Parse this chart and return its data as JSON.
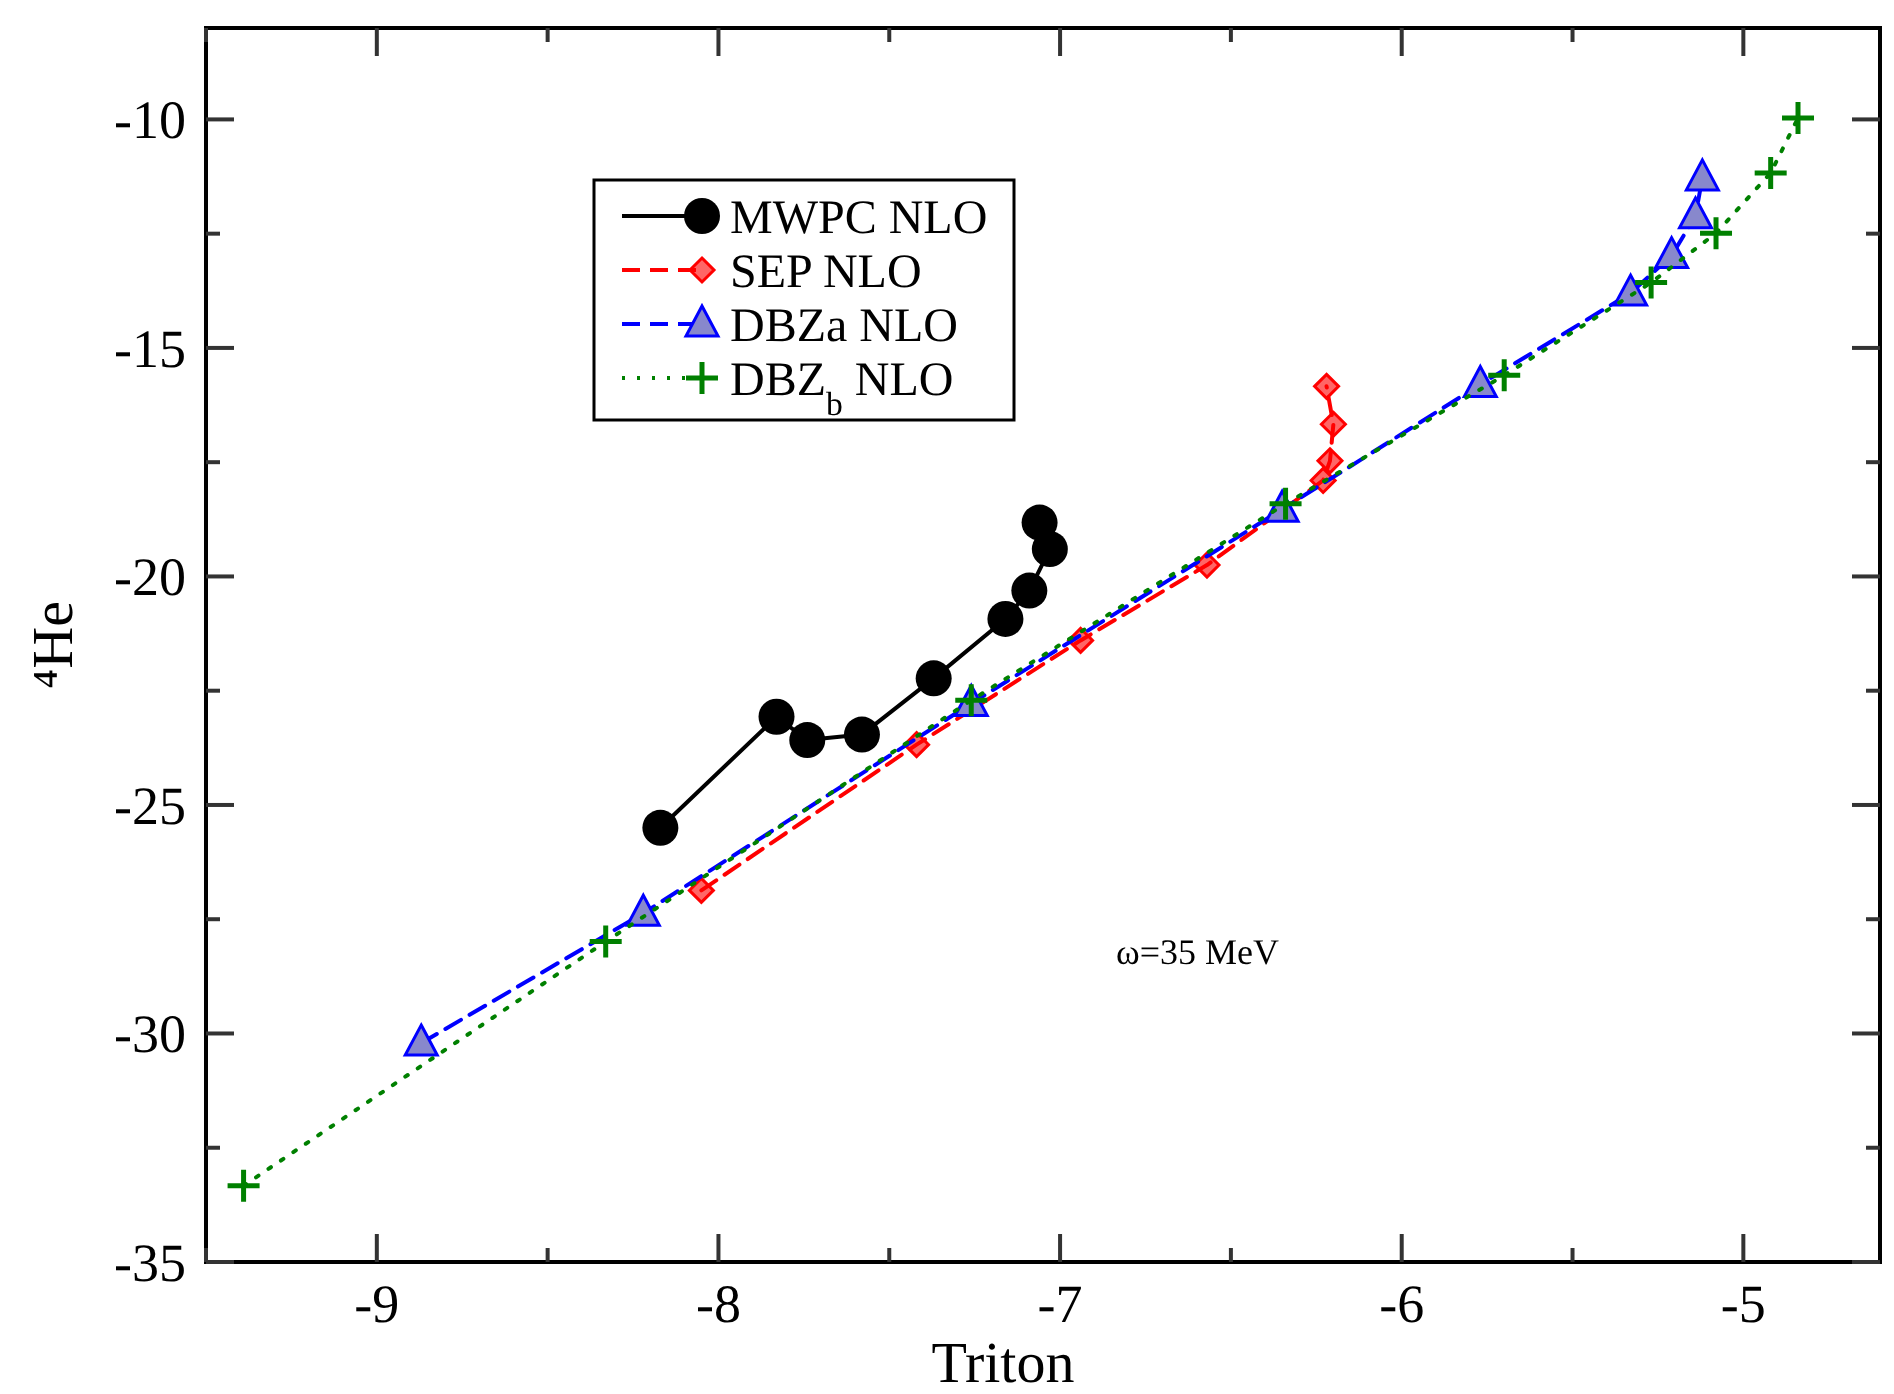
{
  "chart_data": {
    "type": "line",
    "xlabel": "Triton",
    "ylabel": "⁴He",
    "xlim": [
      -9.5,
      -4.6
    ],
    "ylim": [
      -35,
      -8
    ],
    "xticks": [
      {
        "value": -9.5,
        "label": null
      },
      -9,
      {
        "value": -8.5,
        "label": null
      },
      -8,
      {
        "value": -7.5,
        "label": null
      },
      -7,
      {
        "value": -6.5,
        "label": null
      },
      -6,
      {
        "value": -5.5,
        "label": null
      },
      -5
    ],
    "yticks": [
      -35,
      {
        "value": -32.5,
        "label": null
      },
      -30,
      {
        "value": -27.5,
        "label": null
      },
      -25,
      {
        "value": -22.5,
        "label": null
      },
      -20,
      {
        "value": -17.5,
        "label": null
      },
      -15,
      {
        "value": -12.5,
        "label": null
      },
      -10
    ],
    "grid": false,
    "legend": "top left",
    "annotations": [
      "ω=35 MeV"
    ],
    "series": [
      {
        "name": "MWPC NLO",
        "color": "#000000",
        "marker": "circle",
        "line_style": "solid",
        "x": [
          -8.17,
          -7.83,
          -7.74,
          -7.58,
          -7.37,
          -7.16,
          -7.09,
          -7.03,
          -7.06
        ],
        "values": [
          -25.5,
          -23.07,
          -23.58,
          -23.46,
          -22.23,
          -20.93,
          -20.31,
          -19.4,
          -18.82
        ]
      },
      {
        "name": "SEP NLO",
        "color": "#ff0000",
        "marker": "diamond",
        "line_style": "dashed",
        "x": [
          -8.05,
          -7.42,
          -6.94,
          -6.57,
          -6.23,
          -6.21,
          -6.2,
          -6.22
        ],
        "values": [
          -26.87,
          -23.68,
          -21.4,
          -19.75,
          -17.9,
          -17.47,
          -16.67,
          -15.84
        ]
      },
      {
        "name": "DBZa NLO",
        "color": "#0000ff",
        "marker": "triangle",
        "line_style": "dashed",
        "x": [
          -8.87,
          -8.22,
          -7.26,
          -6.35,
          -5.77,
          -5.33,
          -5.21,
          -5.14,
          -5.12
        ],
        "values": [
          -30.21,
          -27.37,
          -22.78,
          -18.53,
          -15.8,
          -13.8,
          -12.98,
          -12.11,
          -11.28
        ]
      },
      {
        "name": "DBZ$_{b}$ NLO",
        "color": "#008000",
        "marker": "cross",
        "line_style": "dotted",
        "x": [
          -9.39,
          -8.33,
          -7.26,
          -6.34,
          -5.7,
          -5.27,
          -5.08,
          -4.92,
          -4.84
        ],
        "values": [
          -33.33,
          -27.99,
          -22.71,
          -18.41,
          -15.6,
          -13.57,
          -12.49,
          -11.17,
          -9.97
        ]
      }
    ]
  }
}
